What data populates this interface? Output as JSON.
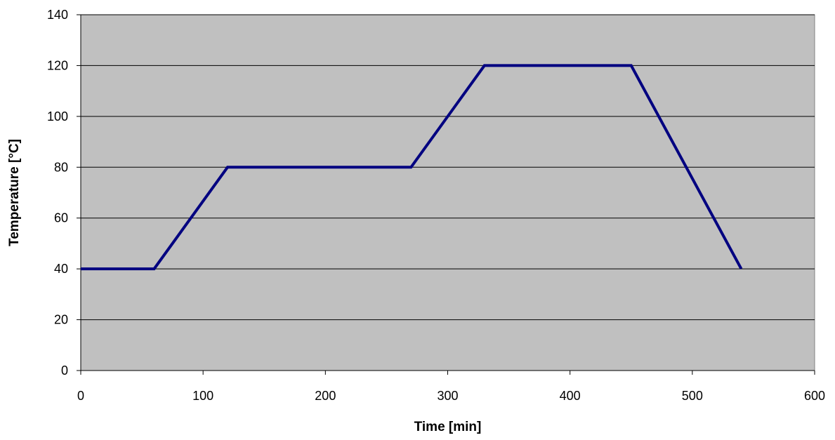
{
  "chart_data": {
    "type": "line",
    "title": "",
    "xlabel": "Time [min]",
    "ylabel": "Temperature [°C]",
    "xlim": [
      0,
      600
    ],
    "ylim": [
      0,
      140
    ],
    "xticks": [
      0,
      100,
      200,
      300,
      400,
      500,
      600
    ],
    "yticks": [
      0,
      20,
      40,
      60,
      80,
      100,
      120,
      140
    ],
    "xtick_labels": [
      "0",
      "100",
      "200",
      "300",
      "400",
      "500",
      "600"
    ],
    "ytick_labels": [
      "0",
      "20",
      "40",
      "60",
      "80",
      "100",
      "120",
      "140"
    ],
    "grid": "horizontal",
    "legend": "none",
    "colors": {
      "plot_background": "#c0c0c0",
      "line": "#000080",
      "gridline": "#000000"
    },
    "series": [
      {
        "x": [
          0,
          60,
          120,
          270,
          330,
          450,
          540
        ],
        "y": [
          40,
          40,
          80,
          80,
          120,
          120,
          40
        ]
      }
    ]
  }
}
